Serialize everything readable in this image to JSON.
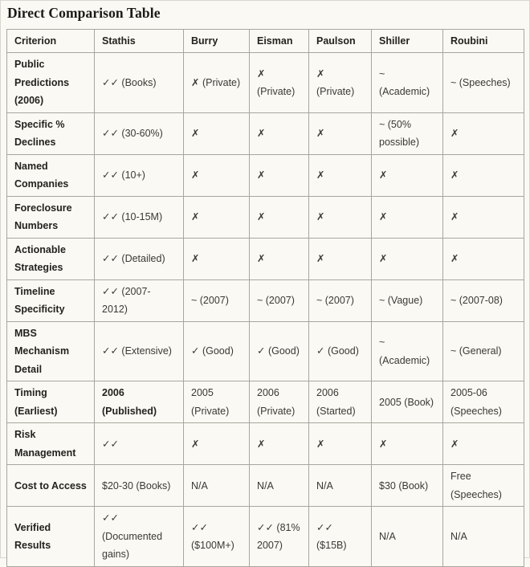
{
  "page": {
    "title": "Direct Comparison Table"
  },
  "table": {
    "columns": [
      "Criterion",
      "Stathis",
      "Burry",
      "Eisman",
      "Paulson",
      "Shiller",
      "Roubini"
    ],
    "rows": [
      {
        "criterion": "Public Predictions (2006)",
        "cells": [
          "✓✓ (Books)",
          "✗ (Private)",
          "✗ (Private)",
          "✗ (Private)",
          "~ (Academic)",
          "~ (Speeches)"
        ]
      },
      {
        "criterion": "Specific % Declines",
        "cells": [
          "✓✓ (30-60%)",
          "✗",
          "✗",
          "✗",
          "~ (50% possible)",
          "✗"
        ]
      },
      {
        "criterion": "Named Companies",
        "cells": [
          "✓✓ (10+)",
          "✗",
          "✗",
          "✗",
          "✗",
          "✗"
        ]
      },
      {
        "criterion": "Foreclosure Numbers",
        "cells": [
          "✓✓ (10-15M)",
          "✗",
          "✗",
          "✗",
          "✗",
          "✗"
        ]
      },
      {
        "criterion": "Actionable Strategies",
        "cells": [
          "✓✓ (Detailed)",
          "✗",
          "✗",
          "✗",
          "✗",
          "✗"
        ]
      },
      {
        "criterion": "Timeline Specificity",
        "cells": [
          "✓✓ (2007-2012)",
          "~ (2007)",
          "~ (2007)",
          "~ (2007)",
          "~ (Vague)",
          "~ (2007-08)"
        ]
      },
      {
        "criterion": "MBS Mechanism Detail",
        "cells": [
          "✓✓ (Extensive)",
          "✓ (Good)",
          "✓ (Good)",
          "✓ (Good)",
          "~ (Academic)",
          "~ (General)"
        ]
      },
      {
        "criterion": "Timing (Earliest)",
        "cells": [
          "2006 (Published)",
          "2005 (Private)",
          "2006 (Private)",
          "2006 (Started)",
          "2005 (Book)",
          "2005-06 (Speeches)"
        ],
        "bold_cells": [
          0
        ]
      },
      {
        "criterion": "Risk Management",
        "cells": [
          "✓✓",
          "✗",
          "✗",
          "✗",
          "✗",
          "✗"
        ]
      },
      {
        "criterion": "Cost to Access",
        "cells": [
          "$20-30 (Books)",
          "N/A",
          "N/A",
          "N/A",
          "$30 (Book)",
          "Free (Speeches)"
        ]
      },
      {
        "criterion": "Verified Results",
        "cells": [
          "✓✓ (Documented gains)",
          "✓✓ ($100M+)",
          "✓✓ (81% 2007)",
          "✓✓ ($15B)",
          "N/A",
          "N/A"
        ]
      }
    ]
  }
}
